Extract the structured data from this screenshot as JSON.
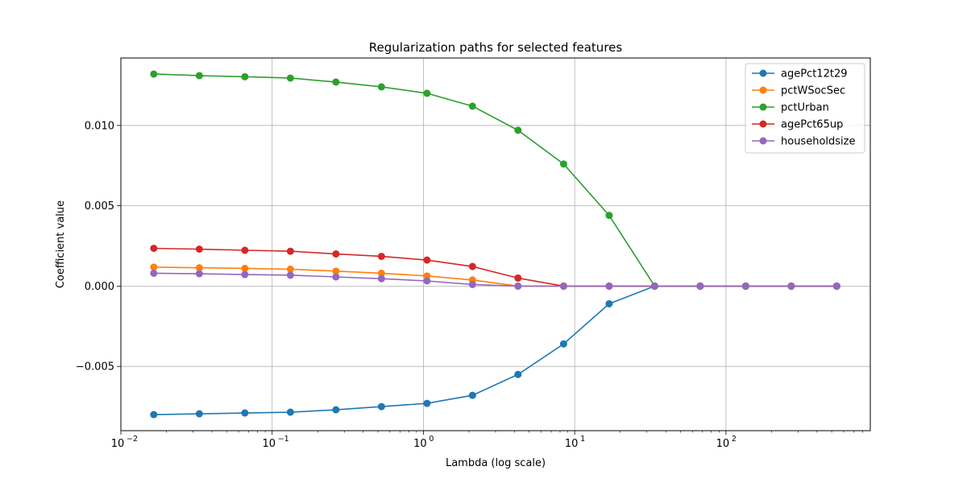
{
  "chart_data": {
    "type": "line",
    "title": "Regularization paths for selected features",
    "xlabel": "Lambda (log scale)",
    "ylabel": "Coefficient value",
    "xscale": "log",
    "xlim": [
      0.01,
      900
    ],
    "ylim": [
      -0.009,
      0.0142
    ],
    "grid": true,
    "legend_position": "top-right",
    "x_tick_labels": [
      "10",
      "10",
      "10",
      "10",
      "10"
    ],
    "x_tick_exponents": [
      "−2",
      "−1",
      "0",
      "1",
      "2"
    ],
    "x_tick_values": [
      0.01,
      0.1,
      1,
      10,
      100
    ],
    "y_tick_labels": [
      "−0.005",
      "0.000",
      "0.005",
      "0.010"
    ],
    "y_tick_values": [
      -0.005,
      0.0,
      0.005,
      0.01
    ],
    "x": [
      0.0165,
      0.033,
      0.066,
      0.132,
      0.264,
      0.528,
      1.056,
      2.11,
      4.22,
      8.45,
      16.9,
      33.8,
      67.6,
      135,
      270,
      540
    ],
    "series": [
      {
        "name": "agePct12t29",
        "color": "#1f77b4",
        "values": [
          -0.008,
          -0.00795,
          -0.0079,
          -0.00785,
          -0.0077,
          -0.0075,
          -0.0073,
          -0.0068,
          -0.0055,
          -0.0036,
          -0.0011,
          0.0,
          0.0,
          0.0,
          0.0,
          0.0
        ]
      },
      {
        "name": "pctWSocSec",
        "color": "#ff7f0e",
        "values": [
          0.00118,
          0.00114,
          0.0011,
          0.00105,
          0.00093,
          0.0008,
          0.00063,
          0.00038,
          0.0,
          0.0,
          0.0,
          0.0,
          0.0,
          0.0,
          0.0,
          0.0
        ]
      },
      {
        "name": "pctUrban",
        "color": "#2ca02c",
        "values": [
          0.0132,
          0.0131,
          0.01303,
          0.01295,
          0.0127,
          0.0124,
          0.012,
          0.0112,
          0.0097,
          0.0076,
          0.0044,
          0.0,
          0.0,
          0.0,
          0.0,
          0.0
        ]
      },
      {
        "name": "agePct65up",
        "color": "#d62728",
        "values": [
          0.00235,
          0.0023,
          0.00223,
          0.00217,
          0.002,
          0.00185,
          0.00162,
          0.00122,
          0.0005,
          0.0,
          0.0,
          0.0,
          0.0,
          0.0,
          0.0,
          0.0
        ]
      },
      {
        "name": "householdsize",
        "color": "#9467bd",
        "values": [
          0.0008,
          0.00077,
          0.00072,
          0.00068,
          0.00057,
          0.00046,
          0.00032,
          0.0001,
          0.0,
          0.0,
          0.0,
          0.0,
          0.0,
          0.0,
          0.0,
          0.0
        ]
      }
    ]
  }
}
